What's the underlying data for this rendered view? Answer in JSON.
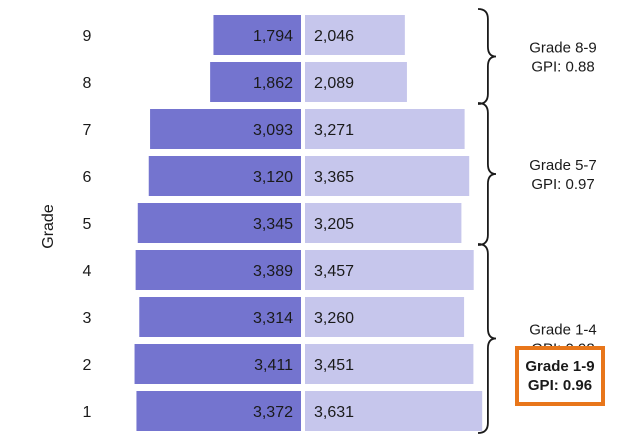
{
  "chart_data": {
    "type": "bar",
    "orientation": "population-pyramid",
    "ylabel": "Grade",
    "categories": [
      "9",
      "8",
      "7",
      "6",
      "5",
      "4",
      "3",
      "2",
      "1"
    ],
    "series": [
      {
        "values": [
          1794,
          1862,
          3093,
          3120,
          3345,
          3389,
          3314,
          3411,
          3372
        ],
        "labels": [
          "1,794",
          "1,862",
          "3,093",
          "3,120",
          "3,345",
          "3,389",
          "3,314",
          "3,411",
          "3,372"
        ],
        "color": "#7474cf",
        "side": "left"
      },
      {
        "values": [
          2046,
          2089,
          3271,
          3365,
          3205,
          3457,
          3260,
          3451,
          3631
        ],
        "labels": [
          "2,046",
          "2,089",
          "3,271",
          "3,365",
          "3,205",
          "3,457",
          "3,260",
          "3,451",
          "3,631"
        ],
        "color": "#c6c6ec",
        "side": "right"
      }
    ],
    "groups": [
      {
        "name": "Grade 8-9",
        "gpi_label": "GPI:  0.88",
        "grades": [
          "9",
          "8"
        ]
      },
      {
        "name": "Grade 5-7",
        "gpi_label": "GPI:  0.97",
        "grades": [
          "7",
          "6",
          "5"
        ]
      },
      {
        "name": "Grade 1-4",
        "gpi_label": "GPI:  0.98",
        "grades": [
          "4",
          "3",
          "2",
          "1"
        ]
      }
    ],
    "total": {
      "name": "Grade 1-9",
      "gpi_label": "GPI:  0.96",
      "highlight_color": "#e8761a"
    }
  }
}
